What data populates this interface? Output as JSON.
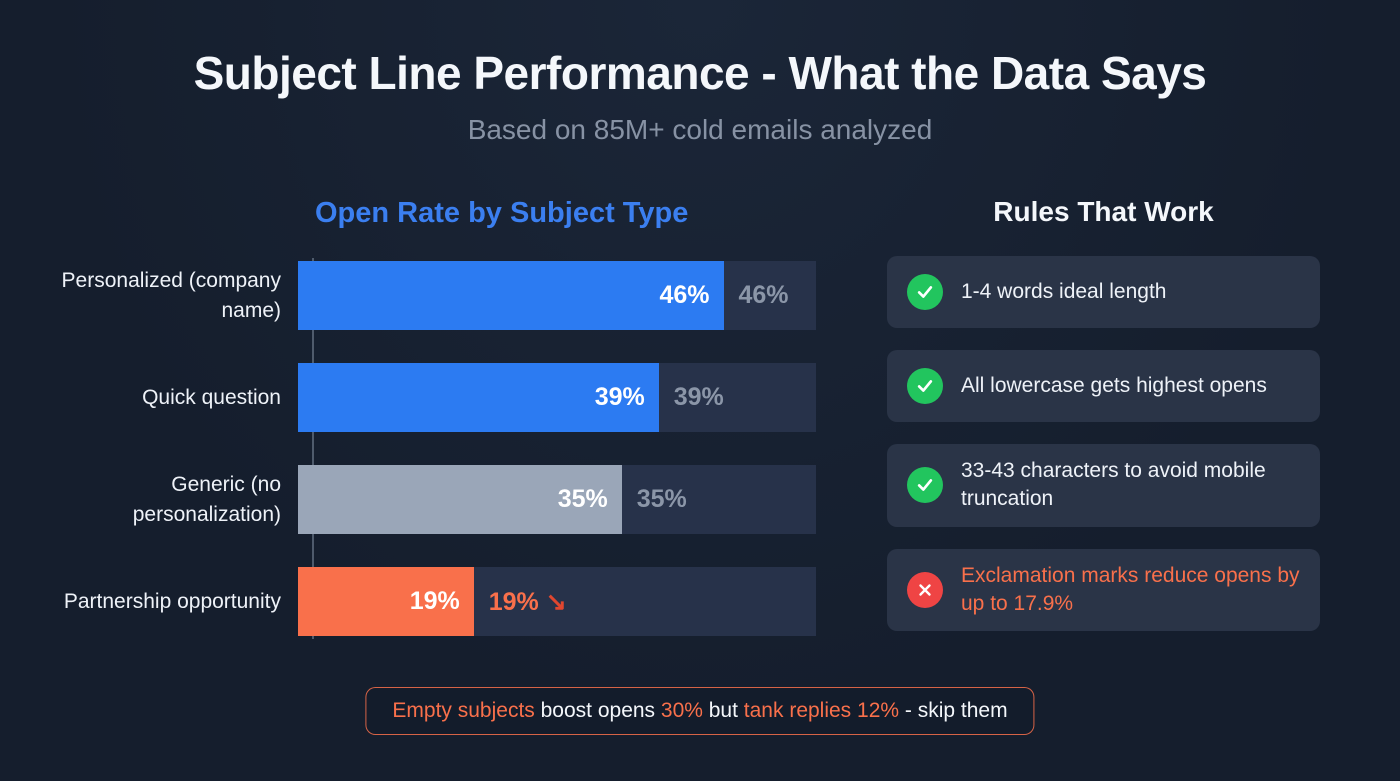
{
  "colors": {
    "background": "#151e2d",
    "accent_blue": "#3b7ff0",
    "bar_blue": "#2c7bf2",
    "bar_gray": "#9aa6b8",
    "accent_orange": "#f9704b",
    "track": "#27324a",
    "card_bg": "#2a3447",
    "green": "#22c55e",
    "red": "#ef4444",
    "text_primary": "#f4f7fb",
    "text_muted": "#8792a4"
  },
  "page": {
    "title": "Subject Line Performance - What the Data Says",
    "subtitle": "Based on 85M+ cold emails analyzed"
  },
  "chart_data": {
    "type": "bar",
    "orientation": "horizontal",
    "title": "Open Rate by Subject Type",
    "categories": [
      "Personalized (company name)",
      "Quick question",
      "Generic (no personalization)",
      "Partnership opportunity"
    ],
    "values": [
      46,
      39,
      35,
      19
    ],
    "value_labels": [
      "46%",
      "39%",
      "35%",
      "19%"
    ],
    "outside_labels": [
      "46%",
      "39%",
      "35%",
      "19%"
    ],
    "trend_arrow": "↘",
    "bar_colors": [
      "#2c7bf2",
      "#2c7bf2",
      "#9aa6b8",
      "#f9704b"
    ],
    "xlim": [
      0,
      56
    ],
    "unit": "%",
    "grid": false,
    "legend": "none"
  },
  "rules": {
    "heading": "Rules That Work",
    "items": [
      {
        "icon": "check-icon",
        "text": "1-4 words ideal length",
        "positive": true
      },
      {
        "icon": "check-icon",
        "text": "All lowercase gets highest opens",
        "positive": true
      },
      {
        "icon": "check-icon",
        "text": "33-43 characters to avoid mobile truncation",
        "positive": true
      },
      {
        "icon": "x-icon",
        "text": "Exclamation marks reduce opens by up to 17.9%",
        "positive": false
      }
    ]
  },
  "callout": {
    "segments": [
      {
        "text": "Empty subjects",
        "highlight": true
      },
      {
        "text": " boost opens ",
        "highlight": false
      },
      {
        "text": "30%",
        "highlight": true
      },
      {
        "text": " but ",
        "highlight": false
      },
      {
        "text": "tank replies 12%",
        "highlight": true
      },
      {
        "text": " - skip them",
        "highlight": false
      }
    ]
  }
}
